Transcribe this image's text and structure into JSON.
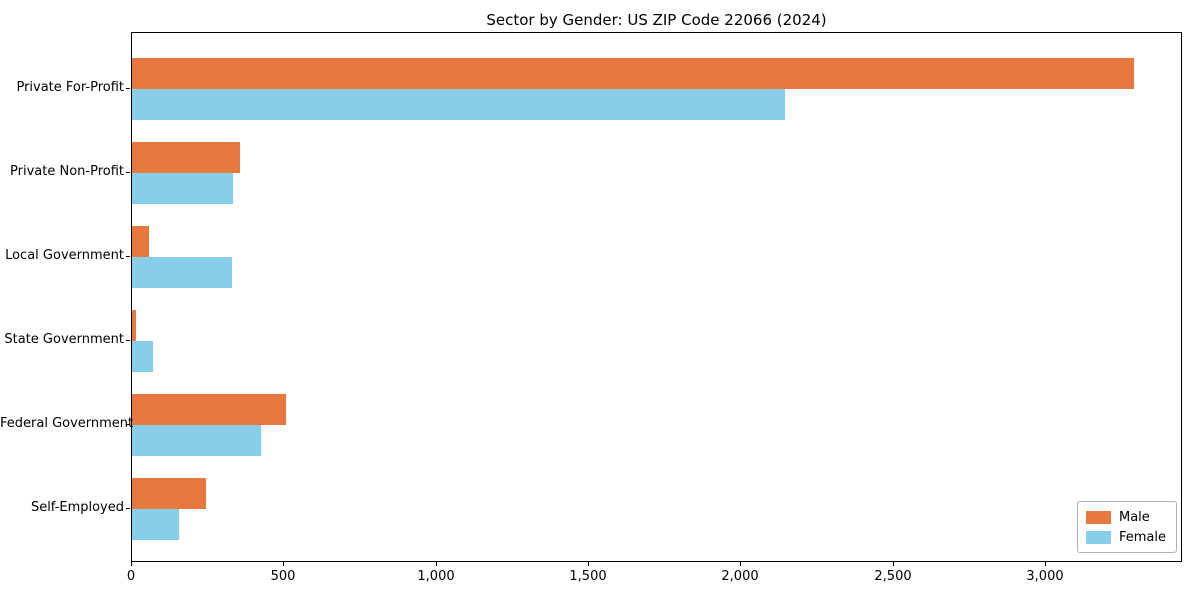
{
  "chart_data": {
    "type": "bar",
    "orientation": "horizontal",
    "title": "Sector by Gender: US ZIP Code 22066 (2024)",
    "categories": [
      "Private For-Profit",
      "Private Non-Profit",
      "Local Government",
      "State Government",
      "Federal Government",
      "Self-Employed"
    ],
    "series": [
      {
        "name": "Male",
        "color": "#e8793e",
        "values": [
          3290,
          354,
          57,
          14,
          507,
          243
        ]
      },
      {
        "name": "Female",
        "color": "#87ceeb",
        "values": [
          2144,
          332,
          328,
          70,
          425,
          153
        ]
      }
    ],
    "xlabel": "",
    "ylabel": "",
    "xlim": [
      0,
      3450
    ],
    "x_ticks": [
      0,
      500,
      1000,
      1500,
      2000,
      2500,
      3000
    ],
    "x_tick_labels": [
      "0",
      "500",
      "1,000",
      "1,500",
      "2,000",
      "2,500",
      "3,000"
    ],
    "grid": false,
    "legend_position": "lower right",
    "legend_title": ""
  }
}
